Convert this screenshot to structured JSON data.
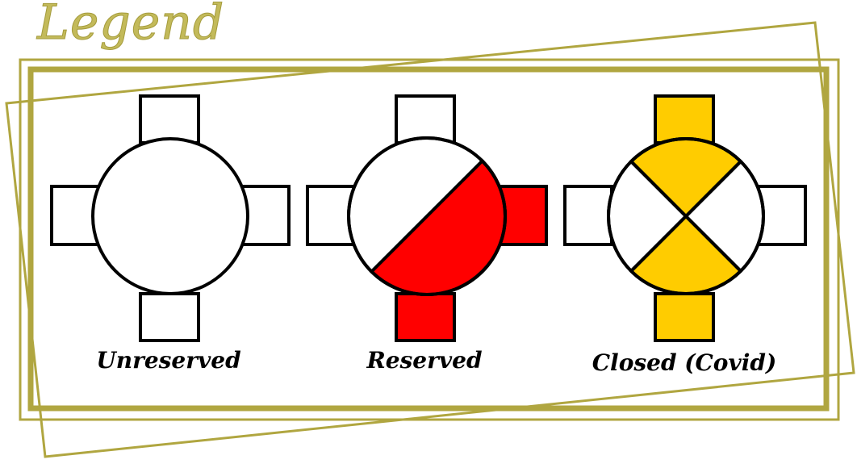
{
  "legend": {
    "title": "Legend",
    "frame_color": "#b0a640",
    "title_color": "#c3ba5a"
  },
  "tables": [
    {
      "id": "unreserved",
      "label": "Unreserved",
      "fill_color": "#ffffff",
      "pattern": "empty"
    },
    {
      "id": "reserved",
      "label": "Reserved",
      "fill_color": "#ff0000",
      "pattern": "diagonal-half"
    },
    {
      "id": "closed",
      "label": "Closed (Covid)",
      "fill_color": "#ffcc00",
      "pattern": "x-quarters"
    }
  ]
}
